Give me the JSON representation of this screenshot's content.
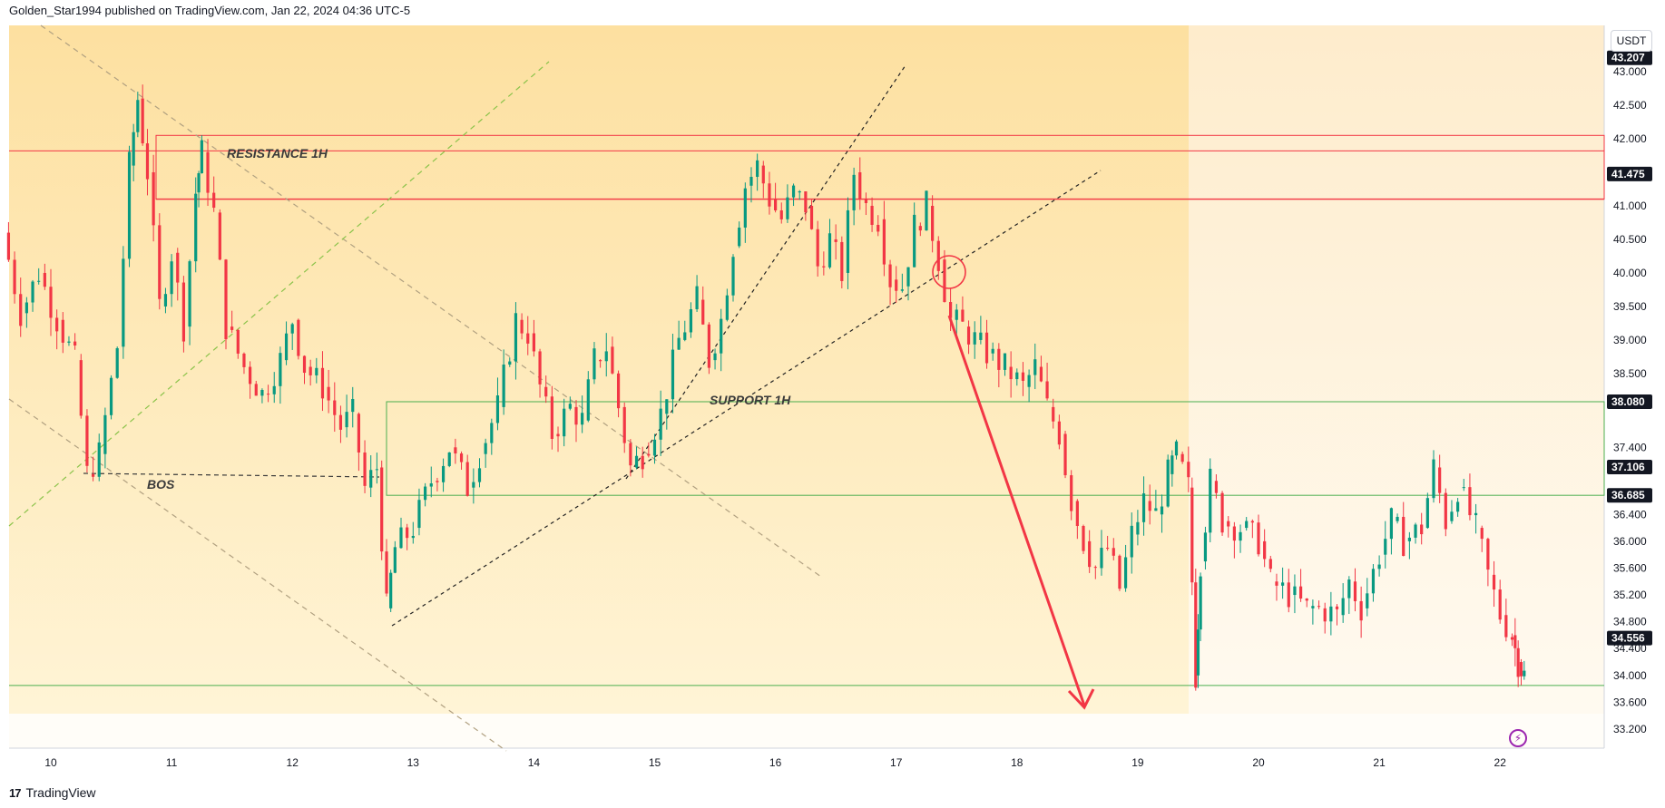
{
  "header": {
    "publisher_text": "Golden_Star1994 published on TradingView.com, Jan 22, 2024 04:36 UTC-5"
  },
  "brand": {
    "logo_glyph": "17",
    "name": "TradingView"
  },
  "currency_button": "USDT",
  "lightning_icon": "⚡",
  "colors": {
    "up": "#089981",
    "down": "#f23645",
    "resistance": "#f23645",
    "support": "#4caf50",
    "projection_arrow": "#f23645",
    "background_gradient_top": "#fde3a7",
    "background_gradient_bottom": "#fff6dc"
  },
  "chart_data": {
    "type": "candlestick",
    "symbol_quote": "USDT",
    "price_axis": {
      "range": [
        32.9,
        43.6
      ],
      "ticks": [
        "43.000",
        "42.500",
        "42.000",
        "41.000",
        "40.500",
        "40.000",
        "39.500",
        "39.000",
        "38.500",
        "37.400",
        "36.400",
        "36.000",
        "35.600",
        "35.200",
        "34.800",
        "34.400",
        "34.000",
        "33.600",
        "33.200"
      ]
    },
    "time_axis": {
      "ticks": [
        "10",
        "11",
        "12",
        "13",
        "14",
        "15",
        "16",
        "17",
        "18",
        "19",
        "20",
        "21",
        "22"
      ]
    },
    "price_badges": [
      {
        "value": "43.207",
        "color": "#131722"
      },
      {
        "value": "41.475",
        "color": "#131722"
      },
      {
        "value": "38.080",
        "color": "#131722"
      },
      {
        "value": "37.106",
        "color": "#131722"
      },
      {
        "value": "36.685",
        "color": "#131722"
      },
      {
        "value": "34.556",
        "color": "#131722"
      }
    ],
    "levels": [
      {
        "name": "resistance-top",
        "price": 42.05,
        "color": "#f23645"
      },
      {
        "name": "resistance-mid",
        "price": 41.82,
        "color": "#f23645"
      },
      {
        "name": "resistance-bottom",
        "price": 41.1,
        "color": "#f23645"
      },
      {
        "name": "support-top",
        "price": 38.08,
        "color": "#4caf50"
      },
      {
        "name": "support-bottom",
        "price": 36.685,
        "color": "#4caf50"
      },
      {
        "name": "support-low",
        "price": 33.85,
        "color": "#4caf50"
      }
    ],
    "annotations": {
      "resistance_label": "RESISTANCE 1H",
      "support_label": "SUPPORT 1H",
      "bos_label": "BOS"
    },
    "price_path": [
      [
        9.6,
        40.6
      ],
      [
        9.75,
        39.4
      ],
      [
        9.9,
        40.0
      ],
      [
        10.05,
        39.3
      ],
      [
        10.2,
        38.7
      ],
      [
        10.3,
        37.0
      ],
      [
        10.4,
        37.3
      ],
      [
        10.55,
        38.9
      ],
      [
        10.65,
        41.6
      ],
      [
        10.72,
        42.6
      ],
      [
        10.8,
        41.5
      ],
      [
        10.9,
        39.5
      ],
      [
        11.0,
        40.3
      ],
      [
        11.1,
        39.2
      ],
      [
        11.2,
        41.2
      ],
      [
        11.25,
        41.8
      ],
      [
        11.35,
        40.9
      ],
      [
        11.45,
        39.2
      ],
      [
        11.6,
        38.6
      ],
      [
        11.75,
        38.2
      ],
      [
        11.9,
        38.7
      ],
      [
        12.0,
        39.3
      ],
      [
        12.1,
        38.6
      ],
      [
        12.25,
        38.3
      ],
      [
        12.4,
        37.7
      ],
      [
        12.5,
        37.9
      ],
      [
        12.6,
        36.8
      ],
      [
        12.7,
        37.1
      ],
      [
        12.78,
        35.0
      ],
      [
        12.85,
        35.9
      ],
      [
        13.0,
        36.2
      ],
      [
        13.15,
        36.9
      ],
      [
        13.3,
        37.4
      ],
      [
        13.45,
        36.8
      ],
      [
        13.55,
        37.3
      ],
      [
        13.7,
        38.0
      ],
      [
        13.85,
        39.3
      ],
      [
        13.95,
        39.1
      ],
      [
        14.05,
        38.3
      ],
      [
        14.15,
        37.6
      ],
      [
        14.3,
        38.0
      ],
      [
        14.4,
        37.8
      ],
      [
        14.5,
        38.7
      ],
      [
        14.6,
        38.9
      ],
      [
        14.7,
        38.0
      ],
      [
        14.8,
        37.1
      ],
      [
        14.9,
        37.3
      ],
      [
        15.05,
        37.9
      ],
      [
        15.2,
        39.0
      ],
      [
        15.35,
        39.6
      ],
      [
        15.45,
        38.7
      ],
      [
        15.55,
        39.3
      ],
      [
        15.65,
        40.4
      ],
      [
        15.75,
        41.3
      ],
      [
        15.85,
        41.6
      ],
      [
        15.95,
        41.1
      ],
      [
        16.05,
        40.8
      ],
      [
        16.15,
        41.2
      ],
      [
        16.25,
        41.0
      ],
      [
        16.35,
        40.1
      ],
      [
        16.45,
        40.5
      ],
      [
        16.55,
        40.0
      ],
      [
        16.65,
        41.5
      ],
      [
        16.75,
        41.0
      ],
      [
        16.85,
        40.8
      ],
      [
        16.95,
        39.9
      ],
      [
        17.05,
        39.8
      ],
      [
        17.15,
        40.7
      ],
      [
        17.25,
        41.0
      ],
      [
        17.35,
        40.2
      ],
      [
        17.45,
        39.3
      ],
      [
        17.55,
        39.2
      ],
      [
        17.65,
        39.0
      ],
      [
        17.75,
        38.8
      ],
      [
        17.9,
        38.6
      ],
      [
        18.05,
        38.3
      ],
      [
        18.15,
        38.6
      ],
      [
        18.25,
        38.0
      ],
      [
        18.35,
        37.6
      ],
      [
        18.45,
        36.6
      ],
      [
        18.55,
        36.0
      ],
      [
        18.65,
        35.6
      ],
      [
        18.75,
        35.9
      ],
      [
        18.85,
        35.3
      ],
      [
        18.95,
        36.1
      ],
      [
        19.05,
        36.6
      ],
      [
        19.15,
        36.4
      ],
      [
        19.25,
        37.0
      ],
      [
        19.32,
        37.3
      ],
      [
        19.42,
        36.8
      ],
      [
        19.48,
        34.0
      ],
      [
        19.52,
        35.7
      ],
      [
        19.6,
        36.9
      ],
      [
        19.7,
        36.3
      ],
      [
        19.85,
        36.2
      ],
      [
        20.0,
        36.0
      ],
      [
        20.1,
        35.4
      ],
      [
        20.25,
        35.2
      ],
      [
        20.4,
        35.0
      ],
      [
        20.5,
        35.0
      ],
      [
        20.65,
        34.9
      ],
      [
        20.75,
        35.4
      ],
      [
        20.85,
        35.0
      ],
      [
        21.0,
        35.8
      ],
      [
        21.1,
        36.3
      ],
      [
        21.2,
        36.0
      ],
      [
        21.35,
        36.2
      ],
      [
        21.45,
        37.1
      ],
      [
        21.55,
        36.3
      ],
      [
        21.65,
        36.8
      ],
      [
        21.8,
        36.2
      ],
      [
        21.9,
        35.5
      ],
      [
        22.0,
        34.9
      ],
      [
        22.1,
        34.6
      ],
      [
        22.15,
        34.2
      ],
      [
        22.2,
        34.0
      ]
    ]
  }
}
